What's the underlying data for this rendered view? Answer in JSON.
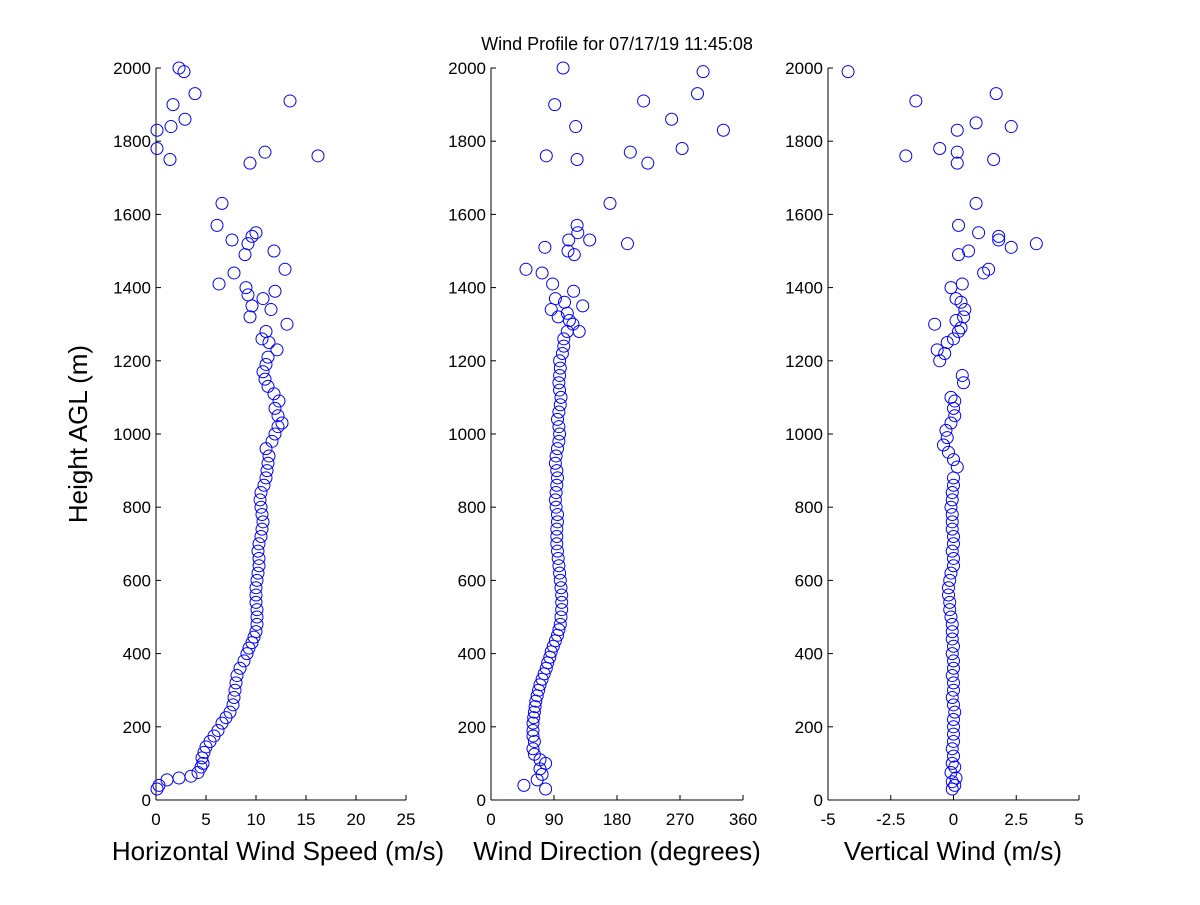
{
  "chart_data": [
    {
      "type": "scatter",
      "title": "Wind Profile for  07/17/19 11:45:08",
      "xlabel": "Horizontal Wind Speed (m/s)",
      "ylabel": "Height AGL (m)",
      "xlim": [
        0,
        25
      ],
      "ylim": [
        0,
        2000
      ],
      "xticks": [
        "0",
        "5",
        "10",
        "15",
        "20",
        "25"
      ],
      "yticks": [
        "0",
        "200",
        "400",
        "600",
        "800",
        "1000",
        "1200",
        "1400",
        "1600",
        "1800",
        "2000"
      ],
      "marker_color": "#0000ff",
      "grid": false,
      "points": [
        [
          0.1,
          30
        ],
        [
          0.3,
          40
        ],
        [
          1.1,
          55
        ],
        [
          2.3,
          60
        ],
        [
          3.5,
          65
        ],
        [
          4.2,
          75
        ],
        [
          4.5,
          90
        ],
        [
          4.7,
          100
        ],
        [
          4.6,
          115
        ],
        [
          4.8,
          130
        ],
        [
          5.0,
          145
        ],
        [
          5.4,
          160
        ],
        [
          5.8,
          175
        ],
        [
          6.2,
          190
        ],
        [
          6.6,
          210
        ],
        [
          7.0,
          225
        ],
        [
          7.4,
          240
        ],
        [
          7.7,
          260
        ],
        [
          7.8,
          280
        ],
        [
          7.9,
          300
        ],
        [
          8.0,
          320
        ],
        [
          8.1,
          340
        ],
        [
          8.4,
          360
        ],
        [
          8.8,
          380
        ],
        [
          9.1,
          400
        ],
        [
          9.3,
          415
        ],
        [
          9.6,
          430
        ],
        [
          9.8,
          445
        ],
        [
          10.0,
          460
        ],
        [
          10.1,
          480
        ],
        [
          10.1,
          500
        ],
        [
          10.1,
          520
        ],
        [
          10.0,
          540
        ],
        [
          10.0,
          560
        ],
        [
          10.0,
          580
        ],
        [
          10.1,
          600
        ],
        [
          10.2,
          620
        ],
        [
          10.3,
          640
        ],
        [
          10.3,
          660
        ],
        [
          10.2,
          680
        ],
        [
          10.3,
          700
        ],
        [
          10.5,
          720
        ],
        [
          10.6,
          740
        ],
        [
          10.7,
          760
        ],
        [
          10.6,
          780
        ],
        [
          10.5,
          800
        ],
        [
          10.4,
          820
        ],
        [
          10.5,
          840
        ],
        [
          10.8,
          860
        ],
        [
          11.0,
          880
        ],
        [
          11.1,
          900
        ],
        [
          11.2,
          920
        ],
        [
          11.3,
          940
        ],
        [
          11.0,
          960
        ],
        [
          11.6,
          980
        ],
        [
          11.9,
          1000
        ],
        [
          12.2,
          1020
        ],
        [
          12.6,
          1030
        ],
        [
          12.2,
          1050
        ],
        [
          11.9,
          1070
        ],
        [
          12.3,
          1090
        ],
        [
          11.8,
          1110
        ],
        [
          11.2,
          1130
        ],
        [
          10.9,
          1150
        ],
        [
          10.7,
          1170
        ],
        [
          11.0,
          1190
        ],
        [
          11.2,
          1210
        ],
        [
          12.1,
          1230
        ],
        [
          11.3,
          1250
        ],
        [
          10.6,
          1260
        ],
        [
          11.0,
          1280
        ],
        [
          13.1,
          1300
        ],
        [
          9.4,
          1320
        ],
        [
          11.5,
          1340
        ],
        [
          9.6,
          1350
        ],
        [
          10.7,
          1370
        ],
        [
          9.2,
          1380
        ],
        [
          11.9,
          1390
        ],
        [
          9.0,
          1400
        ],
        [
          6.3,
          1410
        ],
        [
          7.8,
          1440
        ],
        [
          12.9,
          1450
        ],
        [
          8.9,
          1490
        ],
        [
          11.8,
          1500
        ],
        [
          9.2,
          1520
        ],
        [
          7.6,
          1530
        ],
        [
          9.6,
          1540
        ],
        [
          10.0,
          1550
        ],
        [
          6.1,
          1570
        ],
        [
          6.6,
          1630
        ],
        [
          9.4,
          1740
        ],
        [
          1.4,
          1750
        ],
        [
          16.2,
          1760
        ],
        [
          10.9,
          1770
        ],
        [
          0.1,
          1780
        ],
        [
          0.1,
          1830
        ],
        [
          1.5,
          1840
        ],
        [
          2.9,
          1860
        ],
        [
          1.7,
          1900
        ],
        [
          13.4,
          1910
        ],
        [
          3.9,
          1930
        ],
        [
          2.8,
          1990
        ],
        [
          2.3,
          2000
        ]
      ]
    },
    {
      "type": "scatter",
      "xlabel": "Wind Direction (degrees)",
      "xlim": [
        0,
        360
      ],
      "ylim": [
        0,
        2000
      ],
      "xticks": [
        "0",
        "90",
        "180",
        "270",
        "360"
      ],
      "yticks": [
        "0",
        "200",
        "400",
        "600",
        "800",
        "1000",
        "1200",
        "1400",
        "1600",
        "1800",
        "2000"
      ],
      "marker_color": "#0000ff",
      "grid": false,
      "points": [
        [
          47,
          40
        ],
        [
          78,
          30
        ],
        [
          66,
          55
        ],
        [
          73,
          70
        ],
        [
          70,
          85
        ],
        [
          78,
          100
        ],
        [
          70,
          110
        ],
        [
          62,
          125
        ],
        [
          60,
          140
        ],
        [
          62,
          160
        ],
        [
          60,
          175
        ],
        [
          60,
          190
        ],
        [
          60,
          210
        ],
        [
          61,
          225
        ],
        [
          62,
          240
        ],
        [
          63,
          255
        ],
        [
          64,
          270
        ],
        [
          66,
          285
        ],
        [
          68,
          300
        ],
        [
          70,
          315
        ],
        [
          73,
          330
        ],
        [
          76,
          345
        ],
        [
          79,
          360
        ],
        [
          81,
          375
        ],
        [
          84,
          390
        ],
        [
          86,
          405
        ],
        [
          89,
          420
        ],
        [
          92,
          435
        ],
        [
          95,
          450
        ],
        [
          97,
          465
        ],
        [
          99,
          480
        ],
        [
          100,
          500
        ],
        [
          101,
          520
        ],
        [
          101,
          540
        ],
        [
          101,
          560
        ],
        [
          100,
          580
        ],
        [
          99,
          600
        ],
        [
          98,
          620
        ],
        [
          97,
          640
        ],
        [
          96,
          660
        ],
        [
          95,
          680
        ],
        [
          94,
          700
        ],
        [
          94,
          720
        ],
        [
          94,
          740
        ],
        [
          95,
          760
        ],
        [
          95,
          780
        ],
        [
          93,
          800
        ],
        [
          92,
          820
        ],
        [
          93,
          840
        ],
        [
          94,
          860
        ],
        [
          95,
          880
        ],
        [
          94,
          900
        ],
        [
          92,
          920
        ],
        [
          93,
          940
        ],
        [
          95,
          960
        ],
        [
          97,
          980
        ],
        [
          98,
          1000
        ],
        [
          97,
          1020
        ],
        [
          95,
          1040
        ],
        [
          97,
          1060
        ],
        [
          99,
          1080
        ],
        [
          100,
          1100
        ],
        [
          98,
          1120
        ],
        [
          97,
          1140
        ],
        [
          98,
          1160
        ],
        [
          99,
          1180
        ],
        [
          98,
          1200
        ],
        [
          102,
          1220
        ],
        [
          104,
          1240
        ],
        [
          104,
          1260
        ],
        [
          109,
          1280
        ],
        [
          126,
          1280
        ],
        [
          117,
          1300
        ],
        [
          112,
          1310
        ],
        [
          96,
          1320
        ],
        [
          109,
          1330
        ],
        [
          86,
          1340
        ],
        [
          131,
          1350
        ],
        [
          105,
          1360
        ],
        [
          92,
          1370
        ],
        [
          118,
          1390
        ],
        [
          88,
          1410
        ],
        [
          73,
          1440
        ],
        [
          50,
          1450
        ],
        [
          119,
          1490
        ],
        [
          110,
          1500
        ],
        [
          77,
          1510
        ],
        [
          195,
          1520
        ],
        [
          111,
          1530
        ],
        [
          141,
          1530
        ],
        [
          124,
          1550
        ],
        [
          123,
          1570
        ],
        [
          170,
          1630
        ],
        [
          224,
          1740
        ],
        [
          123,
          1750
        ],
        [
          79,
          1760
        ],
        [
          199,
          1770
        ],
        [
          273,
          1780
        ],
        [
          332,
          1830
        ],
        [
          121,
          1840
        ],
        [
          258,
          1860
        ],
        [
          91,
          1900
        ],
        [
          218,
          1910
        ],
        [
          295,
          1930
        ],
        [
          303,
          1990
        ],
        [
          103,
          2000
        ]
      ]
    },
    {
      "type": "scatter",
      "xlabel": "Vertical Wind (m/s)",
      "xlim": [
        -5,
        5
      ],
      "ylim": [
        0,
        2000
      ],
      "xticks": [
        "-5",
        "-2.5",
        "0",
        "2.5",
        "5"
      ],
      "yticks": [
        "0",
        "200",
        "400",
        "600",
        "800",
        "1000",
        "1200",
        "1400",
        "1600",
        "1800",
        "2000"
      ],
      "marker_color": "#0000ff",
      "grid": false,
      "points": [
        [
          -0.05,
          30
        ],
        [
          0.05,
          40
        ],
        [
          -0.05,
          50
        ],
        [
          0.1,
          60
        ],
        [
          -0.1,
          75
        ],
        [
          0.05,
          90
        ],
        [
          -0.05,
          100
        ],
        [
          0.0,
          120
        ],
        [
          -0.05,
          140
        ],
        [
          0.0,
          160
        ],
        [
          0.0,
          180
        ],
        [
          0.0,
          200
        ],
        [
          0.0,
          220
        ],
        [
          0.05,
          240
        ],
        [
          0.0,
          260
        ],
        [
          -0.05,
          280
        ],
        [
          0.0,
          300
        ],
        [
          0.0,
          320
        ],
        [
          -0.05,
          340
        ],
        [
          0.0,
          360
        ],
        [
          0.0,
          380
        ],
        [
          -0.05,
          400
        ],
        [
          0.0,
          420
        ],
        [
          -0.05,
          440
        ],
        [
          -0.05,
          460
        ],
        [
          -0.05,
          480
        ],
        [
          -0.1,
          500
        ],
        [
          -0.15,
          520
        ],
        [
          -0.15,
          540
        ],
        [
          -0.2,
          560
        ],
        [
          -0.2,
          580
        ],
        [
          -0.15,
          600
        ],
        [
          -0.1,
          620
        ],
        [
          0.0,
          640
        ],
        [
          0.0,
          660
        ],
        [
          -0.05,
          680
        ],
        [
          0.0,
          700
        ],
        [
          0.0,
          720
        ],
        [
          -0.05,
          740
        ],
        [
          -0.05,
          760
        ],
        [
          -0.05,
          780
        ],
        [
          -0.1,
          800
        ],
        [
          -0.05,
          820
        ],
        [
          -0.05,
          840
        ],
        [
          0.0,
          860
        ],
        [
          0.0,
          880
        ],
        [
          0.15,
          910
        ],
        [
          0.0,
          930
        ],
        [
          -0.2,
          950
        ],
        [
          -0.4,
          970
        ],
        [
          -0.25,
          990
        ],
        [
          -0.3,
          1010
        ],
        [
          -0.1,
          1030
        ],
        [
          0.05,
          1050
        ],
        [
          0.0,
          1070
        ],
        [
          0.05,
          1090
        ],
        [
          -0.1,
          1100
        ],
        [
          0.4,
          1140
        ],
        [
          0.35,
          1160
        ],
        [
          -0.55,
          1200
        ],
        [
          -0.35,
          1220
        ],
        [
          -0.65,
          1230
        ],
        [
          -0.25,
          1250
        ],
        [
          0.0,
          1260
        ],
        [
          0.2,
          1280
        ],
        [
          0.3,
          1290
        ],
        [
          -0.75,
          1300
        ],
        [
          0.1,
          1310
        ],
        [
          0.4,
          1320
        ],
        [
          0.45,
          1340
        ],
        [
          0.3,
          1360
        ],
        [
          0.1,
          1370
        ],
        [
          -0.1,
          1400
        ],
        [
          0.35,
          1410
        ],
        [
          1.2,
          1440
        ],
        [
          1.4,
          1450
        ],
        [
          0.2,
          1490
        ],
        [
          0.6,
          1500
        ],
        [
          2.3,
          1510
        ],
        [
          3.3,
          1520
        ],
        [
          1.8,
          1530
        ],
        [
          1.8,
          1540
        ],
        [
          1.0,
          1550
        ],
        [
          0.2,
          1570
        ],
        [
          0.9,
          1630
        ],
        [
          0.15,
          1740
        ],
        [
          1.6,
          1750
        ],
        [
          -1.9,
          1760
        ],
        [
          0.15,
          1770
        ],
        [
          -0.55,
          1780
        ],
        [
          0.15,
          1830
        ],
        [
          2.3,
          1840
        ],
        [
          0.9,
          1850
        ],
        [
          -1.5,
          1910
        ],
        [
          1.7,
          1930
        ],
        [
          -4.2,
          1990
        ]
      ]
    }
  ]
}
